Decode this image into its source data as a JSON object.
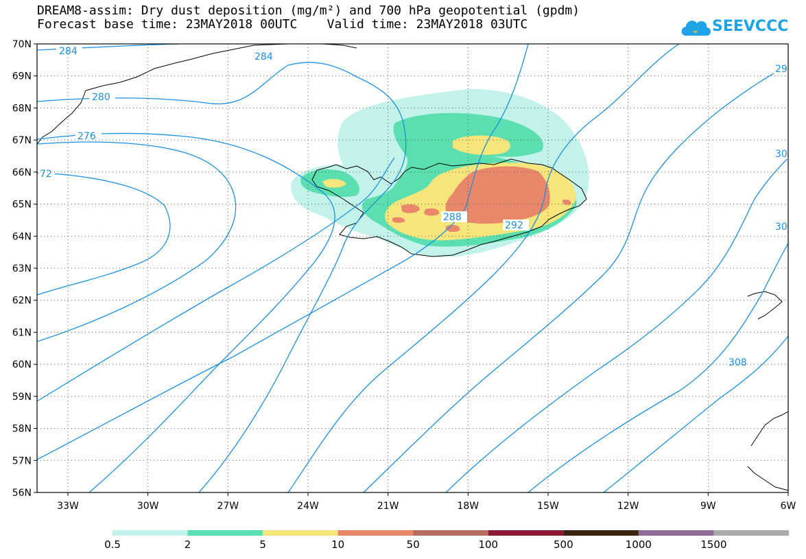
{
  "header": {
    "title_line1": "DREAM8-assim: Dry dust deposition (mg/m²) and 700 hPa geopotential (gpdm)",
    "title_line2": "Forecast base time: 23MAY2018 00UTC    Valid time: 23MAY2018 03UTC"
  },
  "logo": {
    "text": "SEEVCCC",
    "color": "#1ea3e6"
  },
  "map": {
    "lat_labels": [
      "70N",
      "69N",
      "68N",
      "67N",
      "66N",
      "65N",
      "64N",
      "63N",
      "62N",
      "61N",
      "60N",
      "59N",
      "58N",
      "57N",
      "56N"
    ],
    "lon_labels": [
      "33W",
      "30W",
      "27W",
      "24W",
      "21W",
      "18W",
      "15W",
      "12W",
      "9W",
      "6W"
    ],
    "contour_color": "#1a8fe0",
    "contour_labels": [
      "284",
      "284",
      "280",
      "276",
      "72",
      "288",
      "292",
      "29",
      "30",
      "30",
      "308"
    ]
  },
  "legend": {
    "labels": [
      "0.5",
      "2",
      "5",
      "10",
      "50",
      "100",
      "500",
      "1000",
      "1500"
    ],
    "colors": [
      "#c3f2ea",
      "#5cdfb0",
      "#f6e57a",
      "#e9876a",
      "#b56b5d",
      "#8c1a36",
      "#3c2415",
      "#8e6a98",
      "#aaaaaa"
    ]
  }
}
